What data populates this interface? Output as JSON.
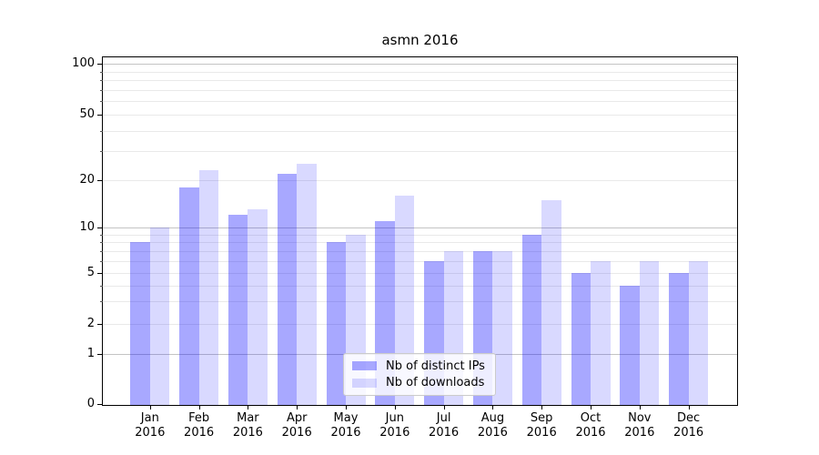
{
  "title": "asmn 2016",
  "chart_data": {
    "type": "bar",
    "title": "asmn 2016",
    "categories": [
      "Jan",
      "Feb",
      "Mar",
      "Apr",
      "May",
      "Jun",
      "Jul",
      "Aug",
      "Sep",
      "Oct",
      "Nov",
      "Dec"
    ],
    "x_tick_year": "2016",
    "series": [
      {
        "name": "Nb of distinct IPs",
        "hex": "#aaaaff",
        "fill": "rgba(0,0,255,0.34)",
        "values": [
          8,
          18,
          12,
          22,
          8,
          11,
          6,
          7,
          9,
          5,
          4,
          5
        ]
      },
      {
        "name": "Nb of downloads",
        "hex": "#d9d9ff",
        "fill": "rgba(0,0,255,0.15)",
        "values": [
          10,
          23,
          13,
          25,
          9,
          16,
          7,
          7,
          15,
          6,
          6,
          6
        ]
      }
    ],
    "yscale": "symlog",
    "ytick_labels": [
      0,
      1,
      2,
      5,
      10,
      20,
      50,
      100
    ],
    "ylim": [
      0,
      115
    ],
    "grid": true,
    "legend_position": "lower center"
  },
  "colors": {
    "major_grid": "#c4c4c4",
    "minor_grid": "#e9e9e9",
    "axis": "#000000",
    "background": "#ffffff"
  }
}
